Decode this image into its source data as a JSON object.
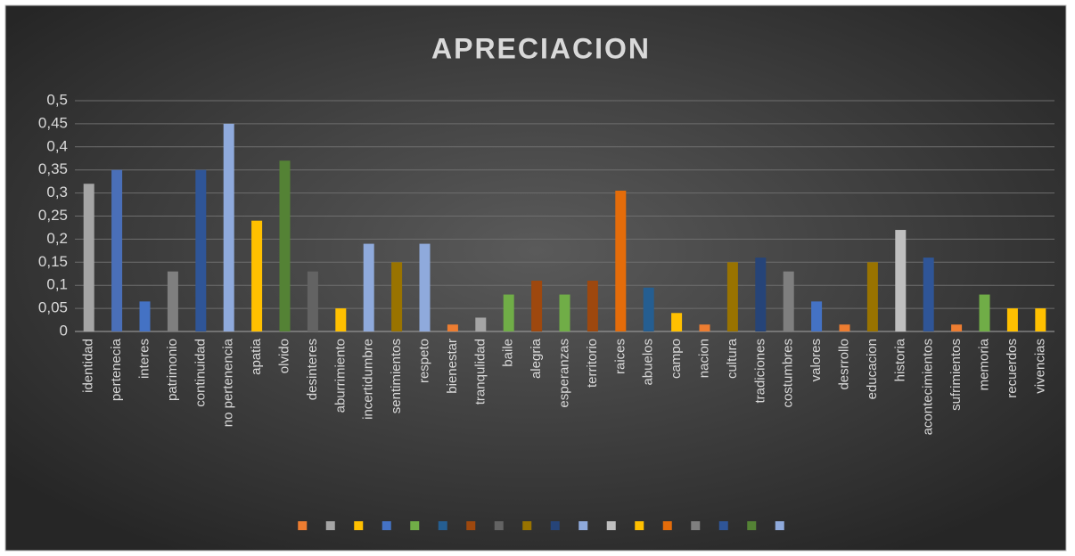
{
  "chart_data": {
    "type": "bar",
    "title": "APRECIACION",
    "categories": [
      "identidad",
      "pertenecia",
      "interes",
      "patrimonio",
      "continuidad",
      "no pertenencia",
      "apatia",
      "olvido",
      "desinteres",
      "aburrimiento",
      "incertidumbre",
      "sentimientos",
      "respeto",
      "bienestar",
      "tranqulidad",
      "baile",
      "alegria",
      "esperanzas",
      "territorio",
      "raices",
      "abuelos",
      "campo",
      "nacion",
      "cultura",
      "tradiciones",
      "costumbres",
      "valores",
      "desrrollo",
      "educacion",
      "historia",
      "acontecimientos",
      "sufrimientos",
      "memoria",
      "recuerdos",
      "vivencias"
    ],
    "values": [
      0.32,
      0.35,
      0.065,
      0.13,
      0.35,
      0.45,
      0.24,
      0.37,
      0.13,
      0.05,
      0.19,
      0.15,
      0.19,
      0.015,
      0.03,
      0.08,
      0.11,
      0.08,
      0.11,
      0.305,
      0.095,
      0.04,
      0.015,
      0.15,
      0.16,
      0.13,
      0.065,
      0.015,
      0.15,
      0.22,
      0.16,
      0.015,
      0.08,
      0.05,
      0.05
    ],
    "colors": [
      "#a5a5a5",
      "#4a6fb8",
      "#4472c4",
      "#7f7f7f",
      "#2f5597",
      "#8faadc",
      "#ffc000",
      "#548235",
      "#636363",
      "#ffc000",
      "#8faadc",
      "#997300",
      "#8faadc",
      "#ed7d31",
      "#a5a5a5",
      "#70ad47",
      "#9e480e",
      "#70ad47",
      "#9e480e",
      "#e46c0a",
      "#255e91",
      "#ffc000",
      "#ed7d31",
      "#997300",
      "#264478",
      "#7f7f7f",
      "#4472c4",
      "#ed7d31",
      "#997300",
      "#bfbfbf",
      "#2f5597",
      "#ed7d31",
      "#70ad47",
      "#ffc000",
      "#ffc000"
    ],
    "legend": {
      "colors": [
        "#ed7d31",
        "#a5a5a5",
        "#ffc000",
        "#4472c4",
        "#70ad47",
        "#255e91",
        "#9e480e",
        "#636363",
        "#997300",
        "#264478",
        "#8faadc",
        "#bfbfbf",
        "#ffc000",
        "#e46c0a",
        "#7f7f7f",
        "#2f5597",
        "#548235",
        "#8faadc"
      ]
    },
    "ylim": [
      0,
      0.5
    ],
    "yticks": [
      0,
      {
        "value": 0.05,
        "label": "0,05"
      },
      {
        "value": 0.1,
        "label": "0,1"
      },
      {
        "value": 0.15,
        "label": "0,15"
      },
      {
        "value": 0.2,
        "label": "0,2"
      },
      {
        "value": 0.25,
        "label": "0,25"
      },
      {
        "value": 0.3,
        "label": "0,3"
      },
      {
        "value": 0.35,
        "label": "0,35"
      },
      {
        "value": 0.4,
        "label": "0,4"
      },
      {
        "value": 0.45,
        "label": "0,45"
      },
      {
        "value": 0.5,
        "label": "0,5"
      }
    ],
    "grid": true
  }
}
